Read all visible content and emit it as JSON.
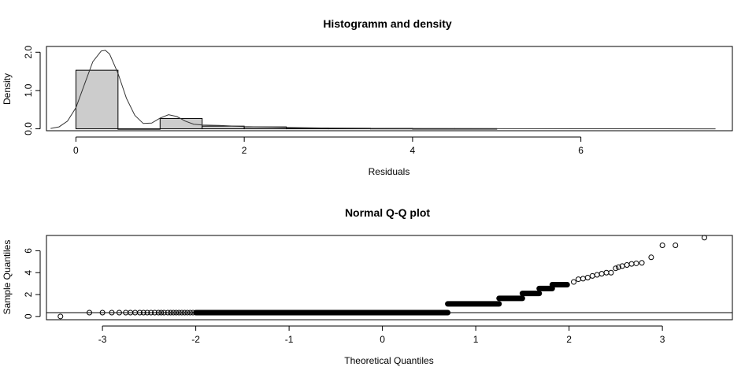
{
  "chart_data": [
    {
      "type": "histogram",
      "title": "Histogramm and density",
      "xlabel": "Residuals",
      "ylabel": "Density",
      "xlim": [
        -0.35,
        7.8
      ],
      "ylim": [
        -0.05,
        2.15
      ],
      "x_ticks": [
        0,
        2,
        4,
        6
      ],
      "x_tick_labels": [
        "0",
        "2",
        "4",
        "6"
      ],
      "y_ticks": [
        0.0,
        1.0,
        2.0
      ],
      "y_tick_labels": [
        "0.0",
        "1.0",
        "2.0"
      ],
      "bins": [
        {
          "start": 0.0,
          "end": 0.5,
          "density": 1.53
        },
        {
          "start": 0.5,
          "end": 1.0,
          "density": 0.0
        },
        {
          "start": 1.0,
          "end": 1.5,
          "density": 0.27
        },
        {
          "start": 1.5,
          "end": 2.0,
          "density": 0.07
        },
        {
          "start": 2.0,
          "end": 2.5,
          "density": 0.05
        },
        {
          "start": 2.5,
          "end": 3.0,
          "density": 0.02
        },
        {
          "start": 3.0,
          "end": 3.5,
          "density": 0.015
        },
        {
          "start": 3.5,
          "end": 4.0,
          "density": 0.01
        },
        {
          "start": 4.0,
          "end": 4.5,
          "density": 0.004
        },
        {
          "start": 4.5,
          "end": 5.0,
          "density": 0.004
        }
      ],
      "density_curve": {
        "x": [
          -0.3,
          -0.2,
          -0.1,
          0.0,
          0.1,
          0.2,
          0.3,
          0.35,
          0.4,
          0.5,
          0.6,
          0.7,
          0.8,
          0.9,
          1.0,
          1.1,
          1.2,
          1.3,
          1.4,
          1.5,
          1.7,
          2.0,
          2.5,
          3.0,
          3.5,
          4.0,
          5.0,
          6.0,
          7.0,
          7.6
        ],
        "y": [
          0.01,
          0.05,
          0.2,
          0.55,
          1.15,
          1.75,
          2.03,
          2.05,
          1.95,
          1.45,
          0.8,
          0.35,
          0.14,
          0.15,
          0.28,
          0.37,
          0.32,
          0.2,
          0.12,
          0.1,
          0.09,
          0.06,
          0.035,
          0.02,
          0.012,
          0.006,
          0.003,
          0.002,
          0.001,
          0.0
        ]
      }
    },
    {
      "type": "scatter",
      "title": "Normal Q-Q plot",
      "xlabel": "Theoretical Quantiles",
      "ylabel": "Sample Quantiles",
      "xlim": [
        -3.6,
        3.75
      ],
      "ylim": [
        -0.3,
        7.4
      ],
      "x_ticks": [
        -3,
        -2,
        -1,
        0,
        1,
        2,
        3
      ],
      "x_tick_labels": [
        "-3",
        "-2",
        "-1",
        "0",
        "1",
        "2",
        "3"
      ],
      "y_ticks": [
        0,
        2,
        4,
        6
      ],
      "y_tick_labels": [
        "0",
        "2",
        "4",
        "6"
      ],
      "reference_line_y": 0.35,
      "points": {
        "x": [
          -3.45,
          -3.14,
          -3.0,
          -2.9,
          -2.82,
          -2.75,
          -2.7,
          -2.65,
          -2.6,
          -2.56,
          -2.52,
          -2.48,
          -2.44,
          -2.4,
          -2.37,
          -2.34,
          -2.3,
          -2.27,
          -2.24,
          -2.21,
          -2.18,
          -2.15,
          -2.12,
          -2.09,
          -2.06,
          -2.03,
          3.0,
          3.14,
          3.45
        ],
        "y": [
          0.0,
          0.35,
          0.35,
          0.35,
          0.35,
          0.35,
          0.35,
          0.35,
          0.35,
          0.35,
          0.35,
          0.35,
          0.35,
          0.35,
          0.35,
          0.35,
          0.35,
          0.35,
          0.35,
          0.35,
          0.35,
          0.35,
          0.35,
          0.35,
          0.35,
          0.35,
          6.5,
          6.5,
          7.2
        ]
      },
      "segments": [
        {
          "x0": -2.0,
          "x1": 0.7,
          "y": 0.35
        },
        {
          "x0": 0.7,
          "x1": 1.25,
          "y": 1.15
        },
        {
          "x0": 1.25,
          "x1": 1.5,
          "y": 1.65
        },
        {
          "x0": 1.5,
          "x1": 1.68,
          "y": 2.1
        },
        {
          "x0": 1.68,
          "x1": 1.82,
          "y": 2.55
        },
        {
          "x0": 1.82,
          "x1": 1.98,
          "y": 2.9
        }
      ],
      "upper_points": {
        "x": [
          2.05,
          2.1,
          2.15,
          2.2,
          2.25,
          2.3,
          2.35,
          2.4,
          2.45,
          2.5,
          2.53,
          2.57,
          2.62,
          2.67,
          2.72,
          2.78,
          2.88
        ],
        "y": [
          3.15,
          3.4,
          3.45,
          3.55,
          3.7,
          3.8,
          3.9,
          4.0,
          4.0,
          4.4,
          4.5,
          4.6,
          4.7,
          4.8,
          4.85,
          4.9,
          5.4
        ]
      }
    }
  ]
}
